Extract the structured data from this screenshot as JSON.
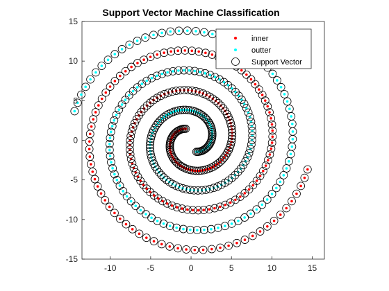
{
  "chart_data": {
    "type": "scatter",
    "title": "Support Vector Machine Classification",
    "xlabel": "",
    "ylabel": "",
    "xlim": [
      -13.5,
      16.5
    ],
    "ylim": [
      -15,
      15
    ],
    "xticks": [
      -10,
      -5,
      0,
      5,
      10,
      15
    ],
    "yticks": [
      -15,
      -10,
      -5,
      0,
      5,
      10,
      15
    ],
    "grid": false,
    "legend_position": "top-right",
    "generator": {
      "form": "archimedean-spiral",
      "note": "points follow r = 0.8*t, theta = t for the inner class; outer class is the same spiral rotated by pi",
      "t_start": 2.0,
      "t_end": 18.6,
      "points_per_class": 220,
      "support_vector_every": 1
    },
    "series": [
      {
        "name": "inner",
        "marker": "dot",
        "color": "#ff0000"
      },
      {
        "name": "outter",
        "marker": "dot",
        "color": "#00ffff"
      },
      {
        "name": "Support Vector",
        "marker": "open-circle",
        "color": "#000000"
      }
    ]
  }
}
